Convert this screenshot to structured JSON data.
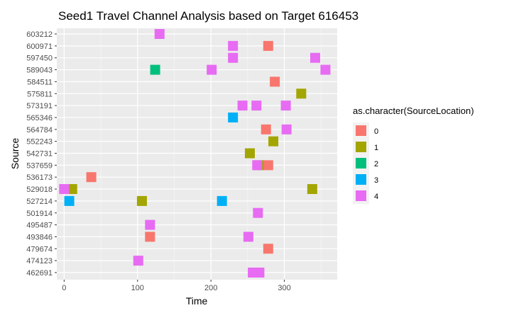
{
  "chart_data": {
    "type": "scatter",
    "title": "Seed1 Travel Channel Analysis based on Target 616453",
    "xlabel": "Time",
    "ylabel": "Source",
    "xlim": [
      -10,
      372
    ],
    "x_ticks": [
      0,
      100,
      200,
      300
    ],
    "categories": [
      "603212",
      "600971",
      "597450",
      "589043",
      "584511",
      "575811",
      "573191",
      "565346",
      "564784",
      "552243",
      "542731",
      "537659",
      "536173",
      "529018",
      "527214",
      "501914",
      "495487",
      "493846",
      "479674",
      "474123",
      "462691"
    ],
    "legend": {
      "title": "as.character(SourceLocation)",
      "position": "right",
      "entries": [
        {
          "label": "0",
          "color": "#F8766D"
        },
        {
          "label": "1",
          "color": "#A3A500"
        },
        {
          "label": "2",
          "color": "#00BF7D"
        },
        {
          "label": "3",
          "color": "#00B0F6"
        },
        {
          "label": "4",
          "color": "#E76BF3"
        }
      ]
    },
    "grid": true,
    "series": [
      {
        "name": "0",
        "color": "#F8766D",
        "points": [
          {
            "x": 278,
            "y": "600971"
          },
          {
            "x": 287,
            "y": "584511"
          },
          {
            "x": 275,
            "y": "564784"
          },
          {
            "x": 278,
            "y": "537659"
          },
          {
            "x": 37,
            "y": "536173"
          },
          {
            "x": 117,
            "y": "493846"
          },
          {
            "x": 278,
            "y": "479674"
          }
        ]
      },
      {
        "name": "1",
        "color": "#A3A500",
        "points": [
          {
            "x": 323,
            "y": "575811"
          },
          {
            "x": 285,
            "y": "552243"
          },
          {
            "x": 253,
            "y": "542731"
          },
          {
            "x": 265,
            "y": "537659"
          },
          {
            "x": 11,
            "y": "529018"
          },
          {
            "x": 338,
            "y": "529018"
          },
          {
            "x": 106,
            "y": "527214"
          }
        ]
      },
      {
        "name": "2",
        "color": "#00BF7D",
        "points": [
          {
            "x": 124,
            "y": "589043"
          }
        ]
      },
      {
        "name": "3",
        "color": "#00B0F6",
        "points": [
          {
            "x": 230,
            "y": "565346"
          },
          {
            "x": 7,
            "y": "527214"
          },
          {
            "x": 215,
            "y": "527214"
          }
        ]
      },
      {
        "name": "4",
        "color": "#E76BF3",
        "points": [
          {
            "x": 130,
            "y": "603212"
          },
          {
            "x": 230,
            "y": "600971"
          },
          {
            "x": 230,
            "y": "597450"
          },
          {
            "x": 342,
            "y": "597450"
          },
          {
            "x": 201,
            "y": "589043"
          },
          {
            "x": 356,
            "y": "589043"
          },
          {
            "x": 243,
            "y": "573191"
          },
          {
            "x": 262,
            "y": "573191"
          },
          {
            "x": 302,
            "y": "573191"
          },
          {
            "x": 303,
            "y": "564784"
          },
          {
            "x": 263,
            "y": "537659"
          },
          {
            "x": 0,
            "y": "529018"
          },
          {
            "x": 264,
            "y": "501914"
          },
          {
            "x": 117,
            "y": "495487"
          },
          {
            "x": 251,
            "y": "493846"
          },
          {
            "x": 101,
            "y": "474123"
          },
          {
            "x": 257,
            "y": "462691"
          },
          {
            "x": 266,
            "y": "462691"
          }
        ]
      }
    ]
  }
}
